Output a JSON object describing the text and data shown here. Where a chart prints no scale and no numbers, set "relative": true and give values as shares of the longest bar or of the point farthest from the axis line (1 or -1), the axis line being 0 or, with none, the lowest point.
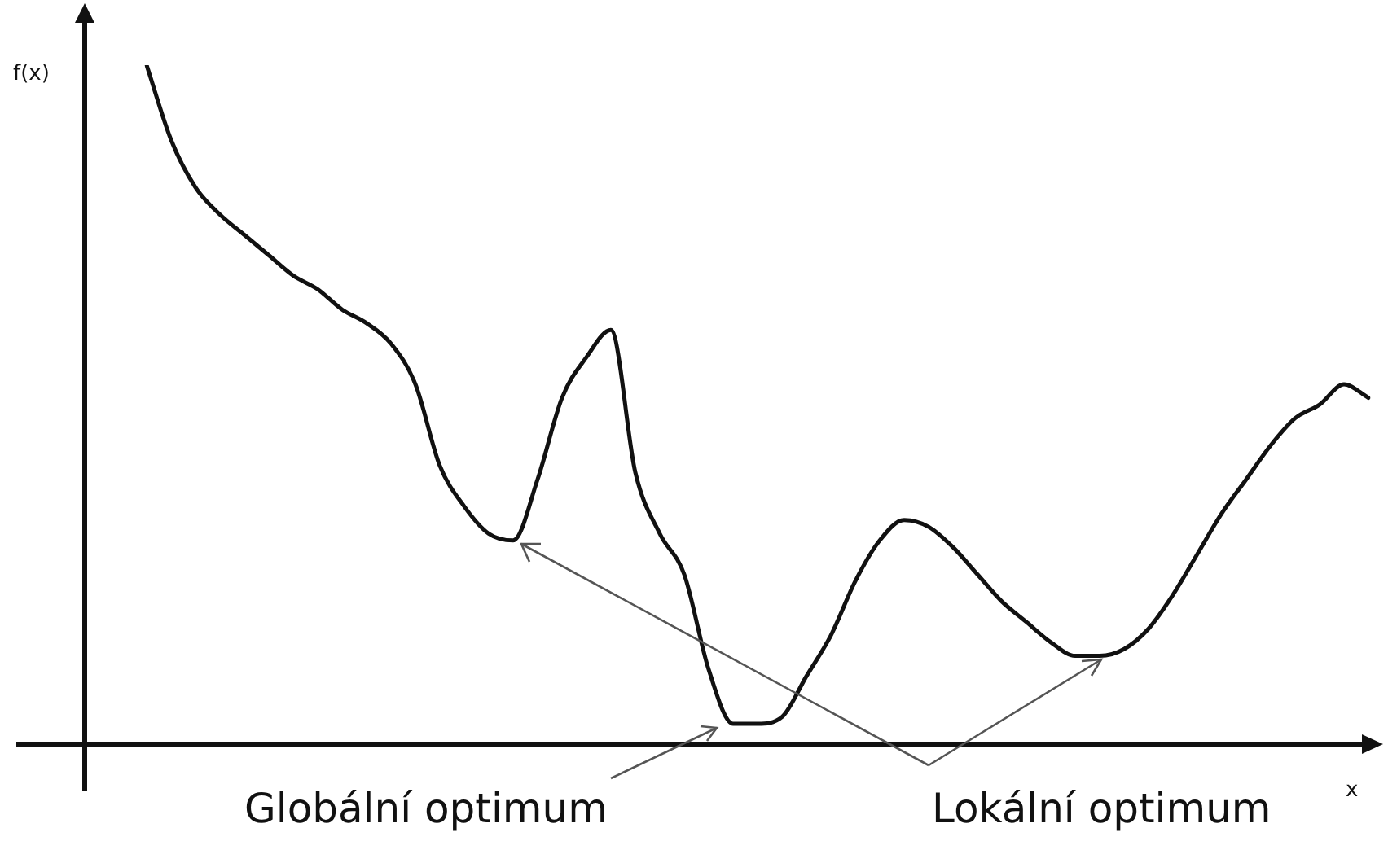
{
  "chart_data": {
    "type": "line",
    "relative": true,
    "xlabel": "x",
    "ylabel": "f(x)",
    "legend": false,
    "marker": "none",
    "line_style": "solid",
    "categories": [
      null,
      null,
      null,
      null,
      null,
      null,
      null,
      null,
      null,
      null,
      null,
      null,
      null,
      null,
      null,
      null,
      null,
      null,
      null,
      null,
      null,
      null,
      null,
      null,
      null,
      null,
      null,
      null,
      null,
      null,
      null,
      null,
      null,
      null,
      null,
      null,
      null,
      null,
      null,
      null,
      null,
      null,
      null,
      null,
      null,
      null,
      null,
      null,
      null,
      null,
      null
    ],
    "series": [
      {
        "color": "#111111",
        "values": [
          1.0,
          0.89,
          0.82,
          0.78,
          0.75,
          0.72,
          0.69,
          0.67,
          0.64,
          0.62,
          0.59,
          0.53,
          0.41,
          0.35,
          0.31,
          0.3,
          0.39,
          0.51,
          0.57,
          0.61,
          0.4,
          0.31,
          0.25,
          0.11,
          0.03,
          0.03,
          0.04,
          0.1,
          0.16,
          0.24,
          0.3,
          0.33,
          0.32,
          0.29,
          0.25,
          0.21,
          0.18,
          0.15,
          0.13,
          0.13,
          0.14,
          0.17,
          0.22,
          0.28,
          0.34,
          0.39,
          0.44,
          0.48,
          0.5,
          0.53,
          0.51
        ]
      }
    ],
    "annotations": [
      "Globální optimum",
      "Lokální optimum"
    ]
  }
}
